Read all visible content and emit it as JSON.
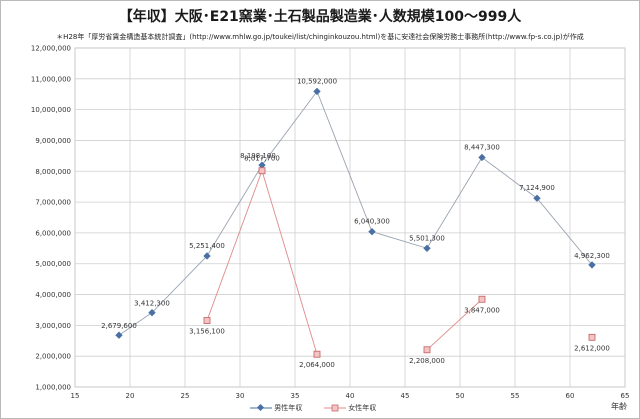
{
  "chart_data": {
    "type": "line",
    "title": "【年収】大阪･E21窯業･土石製品製造業･人数規模100～999人",
    "note": "＊H28年「厚労省賃金構造基本統計調査」(http://www.mhlw.go.jp/toukei/list/chinginkouzou.html)を基に安達社会保険労務士事務所(http://www.fp-s.co.jp)が作成",
    "xlabel": "年齢",
    "ylabel": "",
    "xlim": [
      15,
      65
    ],
    "ylim": [
      1000000,
      12000000
    ],
    "xticks": [
      "15",
      "20",
      "25",
      "30",
      "35",
      "40",
      "45",
      "50",
      "55",
      "60",
      "65"
    ],
    "yticks": [
      "1,000,000",
      "2,000,000",
      "3,000,000",
      "4,000,000",
      "5,000,000",
      "6,000,000",
      "7,000,000",
      "8,000,000",
      "9,000,000",
      "10,000,000",
      "11,000,000",
      "12,000,000"
    ],
    "grid": true,
    "legend_position": "bottom",
    "series": [
      {
        "name": "男性年収",
        "color": "#4a6fa5",
        "marker": "diamond",
        "points": [
          {
            "x": 19,
            "y": 2679600,
            "label": "2,679,600"
          },
          {
            "x": 22,
            "y": 3412300,
            "label": "3,412,300"
          },
          {
            "x": 27,
            "y": 5251400,
            "label": "5,251,400"
          },
          {
            "x": 32,
            "y": 8198100,
            "label": "8,198,100"
          },
          {
            "x": 37,
            "y": 10592000,
            "label": "10,592,000"
          },
          {
            "x": 42,
            "y": 6040300,
            "label": "6,040,300"
          },
          {
            "x": 47,
            "y": 5501300,
            "label": "5,501,300"
          },
          {
            "x": 52,
            "y": 8447300,
            "label": "8,447,300"
          },
          {
            "x": 57,
            "y": 7124900,
            "label": "7,124,900"
          },
          {
            "x": 62,
            "y": 4962300,
            "label": "4,962,300"
          }
        ]
      },
      {
        "name": "女性年収",
        "color": "#e08a8a",
        "marker": "square",
        "points": [
          {
            "x": 27,
            "y": 3156100,
            "label": "3,156,100"
          },
          {
            "x": 32,
            "y": 8017700,
            "label": "8,017,700"
          },
          {
            "x": 37,
            "y": 2064000,
            "label": "2,064,000"
          },
          {
            "x": 47,
            "y": 2208000,
            "label": "2,208,000"
          },
          {
            "x": 52,
            "y": 3847000,
            "label": "3,847,000"
          },
          {
            "x": 62,
            "y": 2612000,
            "label": "2,612,000"
          }
        ],
        "segments": [
          [
            27,
            32
          ],
          [
            32,
            37
          ],
          [
            47,
            52
          ]
        ]
      }
    ]
  }
}
